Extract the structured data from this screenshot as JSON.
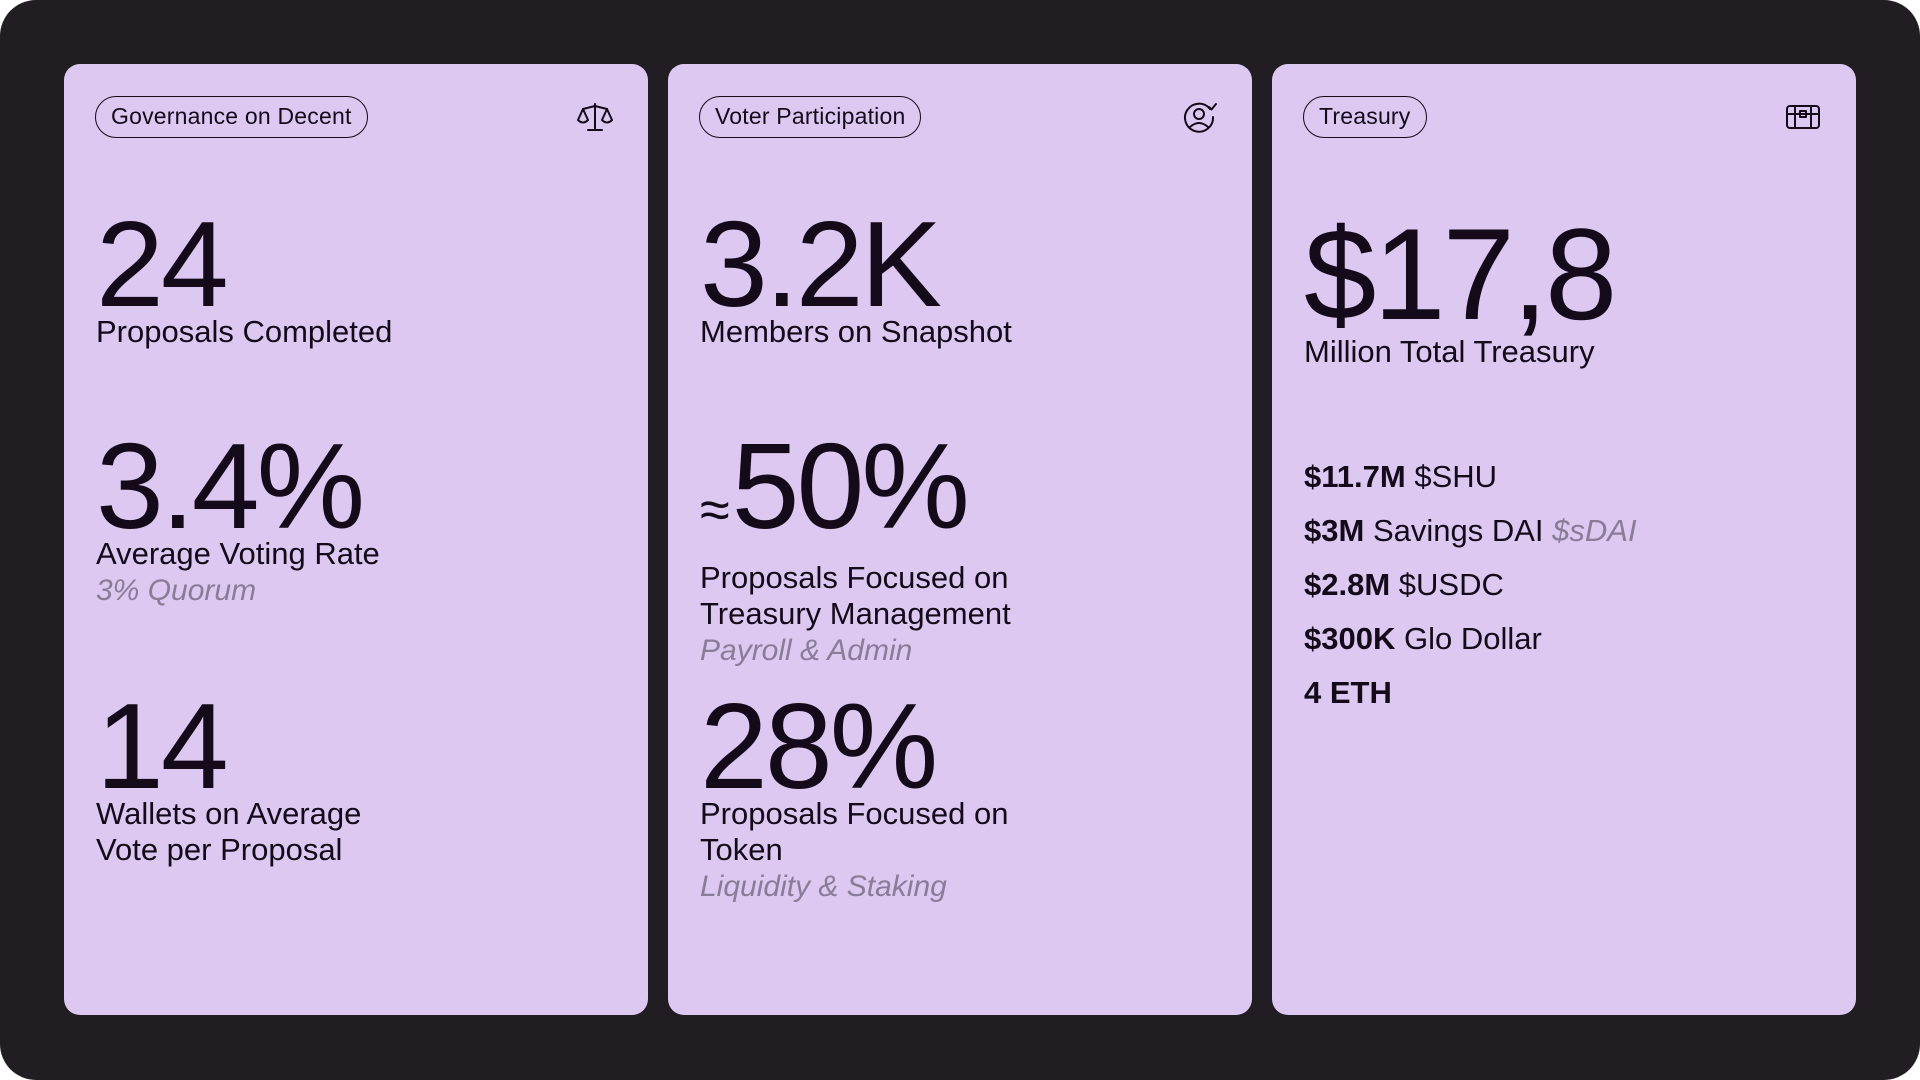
{
  "colors": {
    "background": "#221d23",
    "card": "#dcc8f1",
    "text": "#150a1a",
    "muted": "#8a7b97"
  },
  "governance": {
    "tag": "Governance on Decent",
    "icon": "scales-icon",
    "stats": [
      {
        "value": "24",
        "label": "Proposals Completed"
      },
      {
        "value": "3.4%",
        "label": "Average Voting Rate",
        "sub": "3% Quorum"
      },
      {
        "value": "14",
        "label_line1": "Wallets on Average",
        "label_line2": "Vote per Proposal"
      }
    ]
  },
  "participation": {
    "tag": "Voter Participation",
    "icon": "user-check-icon",
    "stats": [
      {
        "value": "3.2K",
        "label": "Members on Snapshot"
      },
      {
        "prefix": "≈",
        "value": "50%",
        "label_line1": "Proposals Focused on",
        "label_line2": "Treasury Management",
        "sub": "Payroll & Admin"
      },
      {
        "value": "28%",
        "label_line1": "Proposals Focused on",
        "label_line2": "Token",
        "sub": "Liquidity & Staking"
      }
    ]
  },
  "treasury": {
    "tag": "Treasury",
    "icon": "treasure-chest-icon",
    "total": "$17,8",
    "total_label": "Million Total Treasury",
    "holdings": [
      {
        "amount": "$11.7M",
        "name": "$SHU",
        "symbol": ""
      },
      {
        "amount": "$3M",
        "name": "Savings DAI",
        "symbol": "$sDAI"
      },
      {
        "amount": "$2.8M",
        "name": "$USDC",
        "symbol": ""
      },
      {
        "amount": "$300K",
        "name": "Glo Dollar",
        "symbol": ""
      },
      {
        "amount": "4 ETH",
        "name": "",
        "symbol": ""
      }
    ]
  }
}
